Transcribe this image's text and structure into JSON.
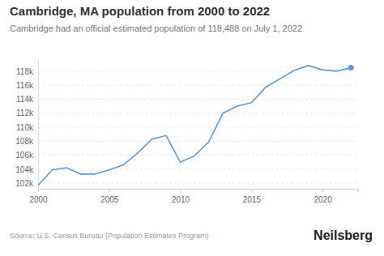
{
  "chart_data": {
    "type": "line",
    "title": "Cambridge, MA population from 2000 to 2022",
    "subtitle": "Cambridge had an official estimated population of 118,488 on July 1, 2022",
    "source": "Source: U.S. Census Bureau (Population Estimates Program)",
    "brand": "Neilsberg",
    "x": [
      2000,
      2001,
      2002,
      2003,
      2004,
      2005,
      2006,
      2007,
      2008,
      2009,
      2010,
      2011,
      2012,
      2013,
      2014,
      2015,
      2016,
      2017,
      2018,
      2019,
      2020,
      2021,
      2022
    ],
    "series": [
      {
        "name": "Population",
        "color": "#5b9bd5",
        "values": [
          101700,
          103900,
          104200,
          103300,
          103300,
          103900,
          104600,
          106300,
          108300,
          108800,
          105000,
          105900,
          107900,
          112000,
          113000,
          113500,
          115700,
          116900,
          118100,
          118800,
          118200,
          118000,
          118488
        ]
      }
    ],
    "xlim": [
      2000,
      2022.5
    ],
    "xticks": [
      2000,
      2005,
      2010,
      2015,
      2020
    ],
    "ylim": [
      101200,
      119600
    ],
    "yticks": [
      {
        "value": 102000,
        "label": "102k"
      },
      {
        "value": 104000,
        "label": "104k"
      },
      {
        "value": 106000,
        "label": "106k"
      },
      {
        "value": 108000,
        "label": "108k"
      },
      {
        "value": 110000,
        "label": "110k"
      },
      {
        "value": 112000,
        "label": "112k"
      },
      {
        "value": 114000,
        "label": "114k"
      },
      {
        "value": 116000,
        "label": "116k"
      },
      {
        "value": 118000,
        "label": "118k"
      }
    ],
    "grid": true
  }
}
